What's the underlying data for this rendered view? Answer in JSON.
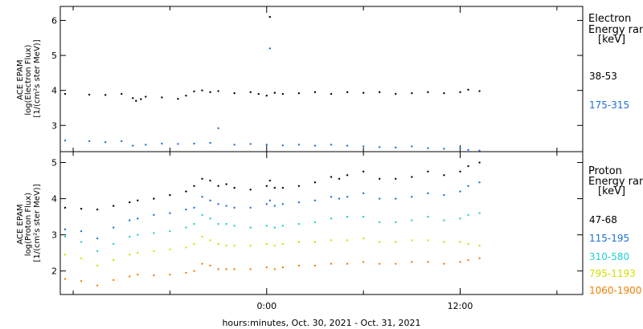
{
  "chart_data": [
    {
      "type": "scatter",
      "panel": "electron",
      "ylabel_lines": [
        "ACE EPAM",
        "log(Electron Flux)",
        "[1/(cm²s ster MeV)]"
      ],
      "ylim": [
        2.25,
        6.4
      ],
      "yticks": [
        3,
        4,
        5,
        6
      ],
      "xlim": [
        -12.8,
        19.6
      ],
      "legend_title": [
        "Electron",
        "Energy ran",
        "[keV]"
      ],
      "series": [
        {
          "name": "38-53",
          "color": "#000000",
          "x": [
            -12.5,
            -11,
            -10,
            -9,
            -8.3,
            -8.1,
            -7.8,
            -7.5,
            -6.5,
            -5.5,
            -5,
            -4.5,
            -4,
            -3.5,
            -3,
            -2,
            -1,
            -0.5,
            0,
            0.2,
            0.5,
            1,
            2,
            3,
            4,
            5,
            6,
            7,
            8,
            9,
            10,
            11,
            12,
            12.5,
            13.2
          ],
          "y": [
            3.9,
            3.88,
            3.87,
            3.9,
            3.78,
            3.7,
            3.75,
            3.82,
            3.8,
            3.76,
            3.85,
            3.97,
            4.0,
            3.95,
            3.98,
            3.92,
            3.95,
            3.9,
            3.85,
            6.1,
            3.93,
            3.9,
            3.92,
            3.95,
            3.9,
            3.95,
            3.93,
            3.95,
            3.9,
            3.92,
            3.95,
            3.92,
            3.95,
            4.02,
            3.98
          ]
        },
        {
          "name": "175-315",
          "color": "#1f70d6",
          "x": [
            -12.5,
            -11,
            -10,
            -9,
            -8.3,
            -7.5,
            -6.5,
            -5.5,
            -4.5,
            -3.5,
            -3,
            -2,
            -1,
            0,
            0.2,
            1,
            2,
            3,
            4,
            5,
            6,
            7,
            8,
            9,
            10,
            11,
            12,
            12.5,
            13.2
          ],
          "y": [
            2.57,
            2.55,
            2.52,
            2.55,
            2.42,
            2.45,
            2.48,
            2.47,
            2.48,
            2.5,
            2.92,
            2.45,
            2.47,
            2.45,
            5.2,
            2.43,
            2.45,
            2.42,
            2.45,
            2.42,
            2.4,
            2.38,
            2.37,
            2.4,
            2.35,
            2.33,
            2.35,
            2.3,
            2.28
          ]
        }
      ]
    },
    {
      "type": "scatter",
      "panel": "proton",
      "ylabel_lines": [
        "ACE EPAM",
        "log(Proton Flux)",
        "[1/(cm²s ster MeV)]"
      ],
      "ylim": [
        1.35,
        5.3
      ],
      "yticks": [
        2,
        3,
        4,
        5
      ],
      "xlim": [
        -12.8,
        19.6
      ],
      "legend_title": [
        "Proton",
        "Energy ran",
        "[keV]"
      ],
      "series": [
        {
          "name": "47-68",
          "color": "#000000",
          "x": [
            -12.5,
            -11.5,
            -10.5,
            -9.5,
            -8.5,
            -8,
            -7,
            -6,
            -5,
            -4.5,
            -4,
            -3.5,
            -3,
            -2.5,
            -2,
            -1,
            0,
            0.2,
            0.5,
            1,
            2,
            3,
            4,
            4.5,
            5,
            6,
            7,
            8,
            9,
            10,
            11,
            12,
            12.5,
            13.2
          ],
          "y": [
            3.75,
            3.72,
            3.7,
            3.8,
            3.9,
            3.95,
            4.0,
            4.1,
            4.2,
            4.35,
            4.55,
            4.5,
            4.35,
            4.4,
            4.3,
            4.25,
            4.35,
            4.5,
            4.3,
            4.3,
            4.35,
            4.45,
            4.6,
            4.55,
            4.65,
            4.75,
            4.55,
            4.55,
            4.6,
            4.75,
            4.65,
            4.75,
            4.9,
            5.0
          ]
        },
        {
          "name": "115-195",
          "color": "#1f70d6",
          "x": [
            -12.5,
            -11.5,
            -10.5,
            -9.5,
            -8.5,
            -8,
            -7,
            -6,
            -5,
            -4.5,
            -4,
            -3.5,
            -3,
            -2.5,
            -2,
            -1,
            0,
            0.2,
            0.5,
            1,
            2,
            3,
            4,
            4.5,
            5,
            6,
            7,
            8,
            9,
            10,
            11,
            12,
            12.5,
            13.2
          ],
          "y": [
            3.15,
            3.1,
            2.9,
            3.2,
            3.4,
            3.45,
            3.55,
            3.6,
            3.7,
            3.75,
            4.05,
            3.95,
            3.85,
            3.8,
            3.75,
            3.75,
            3.85,
            3.95,
            3.8,
            3.85,
            3.9,
            3.95,
            4.05,
            4.0,
            4.05,
            4.15,
            4.0,
            4.0,
            4.05,
            4.15,
            4.1,
            4.2,
            4.35,
            4.45
          ]
        },
        {
          "name": "310-580",
          "color": "#22d0d0",
          "x": [
            -12.5,
            -11.5,
            -10.5,
            -9.5,
            -8.5,
            -8,
            -7,
            -6,
            -5,
            -4.5,
            -4,
            -3.5,
            -3,
            -2.5,
            -2,
            -1,
            0,
            0.5,
            1,
            2,
            3,
            4,
            5,
            6,
            7,
            8,
            9,
            10,
            11,
            12,
            12.5,
            13.2
          ],
          "y": [
            2.95,
            2.8,
            2.55,
            2.75,
            2.95,
            3.0,
            3.05,
            3.1,
            3.2,
            3.3,
            3.55,
            3.45,
            3.3,
            3.3,
            3.25,
            3.2,
            3.25,
            3.2,
            3.25,
            3.3,
            3.35,
            3.45,
            3.5,
            3.5,
            3.35,
            3.35,
            3.4,
            3.5,
            3.4,
            3.45,
            3.55,
            3.6
          ]
        },
        {
          "name": "795-1193",
          "color": "#d0e000",
          "x": [
            -12.5,
            -11.5,
            -10.5,
            -9.5,
            -8.5,
            -8,
            -7,
            -6,
            -5,
            -4.5,
            -4,
            -3.5,
            -3,
            -2.5,
            -2,
            -1,
            0,
            0.5,
            1,
            2,
            3,
            4,
            5,
            6,
            7,
            8,
            9,
            10,
            11,
            12,
            12.5,
            13.2
          ],
          "y": [
            2.45,
            2.35,
            2.15,
            2.3,
            2.45,
            2.5,
            2.55,
            2.6,
            2.65,
            2.75,
            2.95,
            2.85,
            2.75,
            2.7,
            2.7,
            2.7,
            2.75,
            2.7,
            2.75,
            2.8,
            2.8,
            2.85,
            2.85,
            2.9,
            2.8,
            2.8,
            2.85,
            2.85,
            2.8,
            2.8,
            2.75,
            2.7
          ]
        },
        {
          "name": "1060-1900",
          "color": "#f08000",
          "x": [
            -12.5,
            -11.5,
            -10.5,
            -9.5,
            -8.5,
            -8,
            -7,
            -6,
            -5,
            -4.5,
            -4,
            -3.5,
            -3,
            -2.5,
            -2,
            -1,
            0,
            0.5,
            1,
            2,
            3,
            4,
            5,
            6,
            7,
            8,
            9,
            10,
            11,
            12,
            12.5,
            13.2
          ],
          "y": [
            1.78,
            1.72,
            1.6,
            1.75,
            1.85,
            1.9,
            1.88,
            1.9,
            1.95,
            2.0,
            2.2,
            2.15,
            2.05,
            2.05,
            2.05,
            2.05,
            2.1,
            2.05,
            2.1,
            2.15,
            2.15,
            2.2,
            2.2,
            2.25,
            2.2,
            2.2,
            2.25,
            2.25,
            2.2,
            2.25,
            2.3,
            2.35
          ]
        }
      ]
    }
  ],
  "x_axis": {
    "xlim": [
      -12.8,
      19.6
    ],
    "tick_values": [
      0,
      12
    ],
    "tick_labels": [
      "0:00",
      "12:00"
    ],
    "minor_ticks": [
      -12,
      -6,
      6,
      18
    ],
    "label": "hours:minutes, Oct. 30, 2021 - Oct. 31, 2021"
  }
}
